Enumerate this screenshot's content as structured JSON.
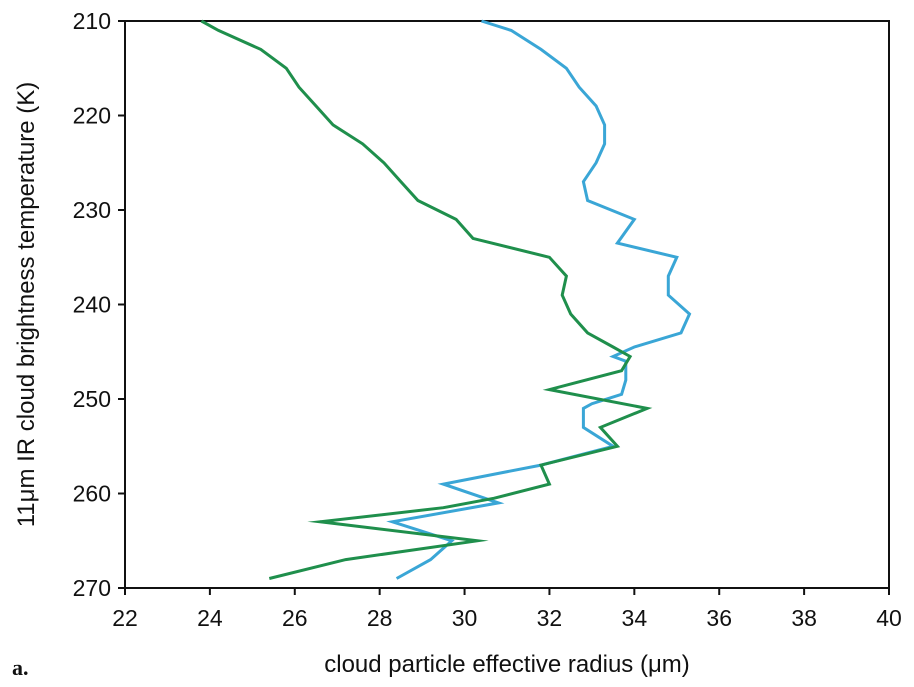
{
  "panel_label": "a.",
  "chart_data": {
    "type": "line",
    "xlabel": "cloud particle effective radius (μm)",
    "ylabel": "11μm IR cloud brightness temperature (K)",
    "xlim": [
      22,
      40
    ],
    "ylim": [
      210,
      270
    ],
    "y_inverted": true,
    "x_ticks": [
      22,
      24,
      26,
      28,
      30,
      32,
      34,
      36,
      38,
      40
    ],
    "y_ticks": [
      210,
      220,
      230,
      240,
      250,
      260,
      270
    ],
    "grid": false,
    "series": [
      {
        "color": "#3aa6d6",
        "points": [
          [
            30.4,
            210
          ],
          [
            31.1,
            211
          ],
          [
            31.8,
            213
          ],
          [
            32.4,
            215
          ],
          [
            32.7,
            217
          ],
          [
            33.1,
            219
          ],
          [
            33.3,
            221
          ],
          [
            33.3,
            223
          ],
          [
            33.1,
            225
          ],
          [
            32.8,
            227
          ],
          [
            32.9,
            229
          ],
          [
            34.0,
            231
          ],
          [
            33.6,
            233.5
          ],
          [
            35.0,
            235
          ],
          [
            34.8,
            237
          ],
          [
            34.8,
            239
          ],
          [
            35.3,
            241
          ],
          [
            35.1,
            243
          ],
          [
            34.0,
            244.5
          ],
          [
            33.5,
            245.5
          ],
          [
            33.8,
            246
          ],
          [
            33.8,
            248
          ],
          [
            33.7,
            249.5
          ],
          [
            33.0,
            250.5
          ],
          [
            32.8,
            251
          ],
          [
            32.8,
            253
          ],
          [
            33.5,
            255
          ],
          [
            31.8,
            257
          ],
          [
            29.5,
            259
          ],
          [
            30.8,
            261
          ],
          [
            28.3,
            263
          ],
          [
            29.7,
            265
          ],
          [
            29.2,
            267
          ],
          [
            28.4,
            269
          ]
        ]
      },
      {
        "color": "#1f8f4c",
        "points": [
          [
            23.8,
            210
          ],
          [
            24.2,
            211
          ],
          [
            25.2,
            213
          ],
          [
            25.8,
            215
          ],
          [
            26.1,
            217
          ],
          [
            26.5,
            219
          ],
          [
            26.9,
            221
          ],
          [
            27.6,
            223
          ],
          [
            28.1,
            225
          ],
          [
            28.5,
            227
          ],
          [
            28.9,
            229
          ],
          [
            29.8,
            231
          ],
          [
            30.2,
            233
          ],
          [
            32.0,
            235
          ],
          [
            32.4,
            237
          ],
          [
            32.3,
            239
          ],
          [
            32.5,
            241
          ],
          [
            32.9,
            243
          ],
          [
            33.5,
            244.5
          ],
          [
            33.9,
            245.5
          ],
          [
            33.7,
            247
          ],
          [
            32.0,
            249
          ],
          [
            34.3,
            251
          ],
          [
            33.2,
            253
          ],
          [
            33.6,
            255
          ],
          [
            31.8,
            257
          ],
          [
            32.0,
            259
          ],
          [
            30.7,
            260.5
          ],
          [
            29.5,
            261.5
          ],
          [
            26.6,
            263
          ],
          [
            30.3,
            265
          ],
          [
            27.2,
            267
          ],
          [
            25.4,
            269
          ]
        ]
      }
    ]
  }
}
